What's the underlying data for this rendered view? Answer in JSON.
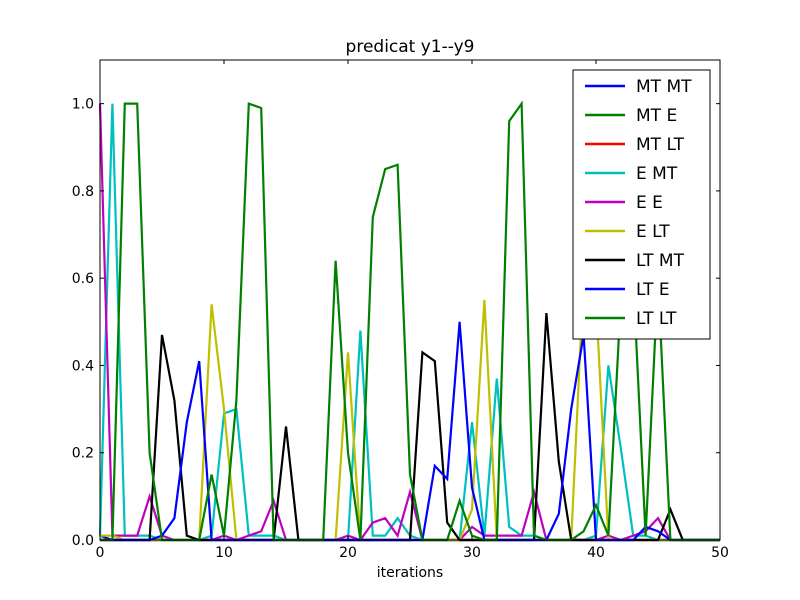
{
  "chart_data": {
    "type": "line",
    "title": "predicat y1--y9",
    "xlabel": "iterations",
    "ylabel": "",
    "xlim": [
      0,
      50
    ],
    "ylim": [
      0,
      1.1
    ],
    "xticks": [
      0,
      10,
      20,
      30,
      40,
      50
    ],
    "xtick_labels": [
      "0",
      "10",
      "20",
      "30",
      "40",
      "50"
    ],
    "yticks": [
      0.0,
      0.2,
      0.4,
      0.6,
      0.8,
      1.0
    ],
    "ytick_labels": [
      "0.0",
      "0.2",
      "0.4",
      "0.6",
      "0.8",
      "1.0"
    ],
    "grid": false,
    "legend_position": "top-right",
    "x": [
      0,
      1,
      2,
      3,
      4,
      5,
      6,
      7,
      8,
      9,
      10,
      11,
      12,
      13,
      14,
      15,
      16,
      17,
      18,
      19,
      20,
      21,
      22,
      23,
      24,
      25,
      26,
      27,
      28,
      29,
      30,
      31,
      32,
      33,
      34,
      35,
      36,
      37,
      38,
      39,
      40,
      41,
      42,
      43,
      44,
      45,
      46,
      47,
      48,
      49,
      50
    ],
    "series": [
      {
        "name": "MT MT",
        "color": "#0000ff",
        "values": [
          0.01,
          0,
          0,
          0,
          0,
          0,
          0,
          0,
          0,
          0,
          0,
          0,
          0,
          0,
          0,
          0,
          0,
          0,
          0,
          0,
          0,
          0,
          0,
          0,
          0,
          0,
          0,
          0,
          0,
          0,
          0,
          0,
          0,
          0,
          0,
          0,
          0,
          0,
          0,
          0,
          0,
          0,
          0,
          0,
          0,
          0,
          0,
          0,
          0,
          0,
          0
        ]
      },
      {
        "name": "MT E",
        "color": "#008000",
        "values": [
          0,
          0,
          0,
          0,
          0,
          0,
          0,
          0,
          0,
          0,
          0,
          0,
          0,
          0,
          0,
          0,
          0,
          0,
          0,
          0,
          0,
          0,
          0,
          0,
          0,
          0,
          0,
          0,
          0,
          0,
          0,
          0,
          0,
          0,
          0,
          0,
          0,
          0,
          0,
          0,
          0,
          0,
          0,
          0,
          0,
          0,
          0,
          0,
          0,
          0,
          0
        ]
      },
      {
        "name": "MT LT",
        "color": "#ff0000",
        "values": [
          0,
          0,
          0,
          0,
          0,
          0,
          0,
          0,
          0,
          0,
          0,
          0,
          0,
          0,
          0,
          0,
          0,
          0,
          0,
          0,
          0,
          0,
          0,
          0,
          0,
          0,
          0,
          0,
          0,
          0,
          0,
          0,
          0,
          0,
          0,
          0,
          0,
          0,
          0,
          0,
          0,
          0,
          0,
          0,
          0,
          0,
          0,
          0,
          0,
          0,
          0
        ]
      },
      {
        "name": "E MT",
        "color": "#00bfbf",
        "values": [
          0.01,
          1.0,
          0.01,
          0.01,
          0.01,
          0,
          0,
          0,
          0,
          0.01,
          0.29,
          0.3,
          0.01,
          0.01,
          0.01,
          0,
          0,
          0,
          0,
          0,
          0,
          0.48,
          0.01,
          0.01,
          0.05,
          0.01,
          0,
          0,
          0,
          0,
          0.27,
          0.01,
          0.37,
          0.03,
          0.01,
          0.01,
          0,
          0,
          0,
          0,
          0.01,
          0.4,
          0.21,
          0.01,
          0.01,
          0,
          0,
          0,
          0,
          0,
          0
        ]
      },
      {
        "name": "E E",
        "color": "#bf00bf",
        "values": [
          1.0,
          0.01,
          0.01,
          0.01,
          0.1,
          0.01,
          0,
          0,
          0,
          0,
          0.01,
          0,
          0.01,
          0.02,
          0.09,
          0,
          0,
          0,
          0,
          0,
          0.01,
          0,
          0.04,
          0.05,
          0.01,
          0.11,
          0,
          0,
          0,
          0,
          0.03,
          0.01,
          0.01,
          0.01,
          0.01,
          0.11,
          0,
          0,
          0,
          0,
          0,
          0.01,
          0,
          0.01,
          0.02,
          0.05,
          0,
          0,
          0,
          0,
          0
        ]
      },
      {
        "name": "E LT",
        "color": "#bfbf00",
        "values": [
          0.01,
          0.01,
          0,
          0,
          0,
          0,
          0,
          0,
          0,
          0.54,
          0.3,
          0,
          0,
          0,
          0,
          0,
          0,
          0,
          0,
          0,
          0.43,
          0,
          0,
          0,
          0,
          0,
          0,
          0,
          0,
          0,
          0.07,
          0.55,
          0,
          0,
          0,
          0,
          0,
          0,
          0,
          0.6,
          0.55,
          0,
          0,
          0,
          0,
          0,
          0,
          0,
          0,
          0,
          0
        ]
      },
      {
        "name": "LT MT",
        "color": "#000000",
        "values": [
          0,
          0,
          0,
          0,
          0,
          0.47,
          0.32,
          0.01,
          0,
          0,
          0,
          0,
          0,
          0,
          0,
          0.26,
          0,
          0,
          0,
          0,
          0,
          0,
          0,
          0,
          0,
          0,
          0.43,
          0.41,
          0.04,
          0,
          0,
          0,
          0,
          0,
          0,
          0,
          0.52,
          0.18,
          0,
          0,
          0,
          0,
          0,
          0,
          0,
          0,
          0.07,
          0,
          0,
          0,
          0
        ]
      },
      {
        "name": "LT E",
        "color": "#0000ff",
        "values": [
          0,
          0,
          0,
          0,
          0,
          0.01,
          0.05,
          0.27,
          0.41,
          0,
          0,
          0,
          0,
          0,
          0,
          0,
          0,
          0,
          0,
          0,
          0,
          0,
          0,
          0,
          0,
          0,
          0,
          0.17,
          0.14,
          0.5,
          0.12,
          0,
          0,
          0,
          0,
          0,
          0,
          0.06,
          0.3,
          0.47,
          0,
          0,
          0,
          0,
          0.03,
          0.02,
          0,
          0,
          0,
          0,
          0
        ]
      },
      {
        "name": "LT LT",
        "color": "#008000",
        "values": [
          0,
          0,
          1.0,
          1.0,
          0.2,
          0,
          0,
          0,
          0,
          0.15,
          0.01,
          0.32,
          1.0,
          0.99,
          0,
          0,
          0,
          0,
          0,
          0.64,
          0.2,
          0,
          0.74,
          0.85,
          0.86,
          0.15,
          0,
          0,
          0,
          0.09,
          0.01,
          0,
          0,
          0.96,
          1.0,
          0.01,
          0,
          0,
          0,
          0.02,
          0.08,
          0.01,
          0.55,
          0.6,
          0.01,
          0.6,
          0,
          0,
          0,
          0,
          0
        ]
      }
    ]
  }
}
